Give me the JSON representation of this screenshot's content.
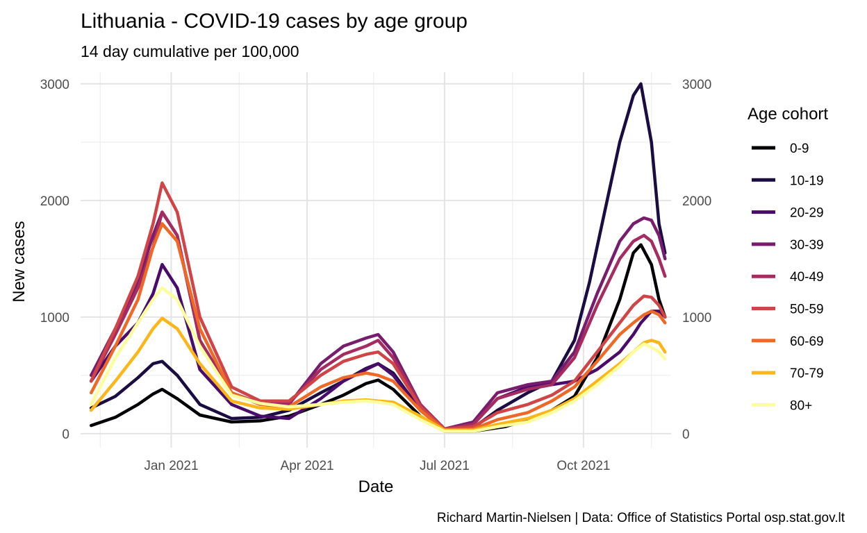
{
  "chart_data": {
    "type": "line",
    "title": "Lithuania - COVID-19 cases by age group",
    "subtitle": "14 day cumulative per 100,000",
    "xlabel": "Date",
    "ylabel": "New cases",
    "caption": "Richard Martin-Nielsen | Data: Office of Statistics Portal osp.stat.gov.lt",
    "legend_title": "Age cohort",
    "legend_position": "right",
    "grid": true,
    "xlim": [
      "2020-11-02",
      "2021-11-28"
    ],
    "ylim": [
      -120,
      3100
    ],
    "y_ticks": [
      0,
      1000,
      2000,
      3000
    ],
    "y_tick_labels": [
      "0",
      "1000",
      "2000",
      "3000"
    ],
    "x_ticks": [
      "2021-01-01",
      "2021-04-01",
      "2021-07-01",
      "2021-10-01"
    ],
    "x_tick_labels": [
      "Jan 2021",
      "Apr 2021",
      "Jul 2021",
      "Oct 2021"
    ],
    "x_minor_ticks": [
      "2020-11-15",
      "2021-02-15",
      "2021-05-15",
      "2021-08-15",
      "2021-11-15"
    ],
    "series": [
      {
        "name": "0-9",
        "color": "#000004",
        "x": [
          "2020-11-09",
          "2020-11-25",
          "2020-12-10",
          "2020-12-20",
          "2020-12-26",
          "2021-01-05",
          "2021-01-20",
          "2021-02-10",
          "2021-03-01",
          "2021-03-20",
          "2021-04-10",
          "2021-04-25",
          "2021-05-10",
          "2021-05-18",
          "2021-05-28",
          "2021-06-15",
          "2021-07-01",
          "2021-07-20",
          "2021-08-10",
          "2021-08-25",
          "2021-09-10",
          "2021-09-25",
          "2021-10-10",
          "2021-10-25",
          "2021-11-03",
          "2021-11-08",
          "2021-11-15",
          "2021-11-20",
          "2021-11-24"
        ],
        "y": [
          70,
          140,
          250,
          340,
          380,
          300,
          160,
          100,
          110,
          150,
          250,
          330,
          430,
          460,
          380,
          150,
          20,
          20,
          60,
          120,
          200,
          320,
          650,
          1150,
          1550,
          1620,
          1450,
          1150,
          1000
        ]
      },
      {
        "name": "10-19",
        "color": "#1b0c41",
        "x": [
          "2020-11-09",
          "2020-11-25",
          "2020-12-10",
          "2020-12-20",
          "2020-12-26",
          "2021-01-05",
          "2021-01-20",
          "2021-02-10",
          "2021-03-01",
          "2021-03-20",
          "2021-04-10",
          "2021-04-25",
          "2021-05-10",
          "2021-05-18",
          "2021-05-28",
          "2021-06-15",
          "2021-07-01",
          "2021-07-20",
          "2021-08-05",
          "2021-08-25",
          "2021-09-10",
          "2021-09-25",
          "2021-10-05",
          "2021-10-15",
          "2021-10-25",
          "2021-11-03",
          "2021-11-08",
          "2021-11-15",
          "2021-11-20",
          "2021-11-24"
        ],
        "y": [
          220,
          320,
          480,
          600,
          620,
          500,
          250,
          130,
          140,
          200,
          350,
          450,
          560,
          600,
          520,
          200,
          30,
          50,
          200,
          350,
          450,
          800,
          1300,
          1900,
          2500,
          2900,
          3000,
          2500,
          1800,
          1550
        ]
      },
      {
        "name": "20-29",
        "color": "#4a0c6b",
        "x": [
          "2020-11-09",
          "2020-11-25",
          "2020-12-10",
          "2020-12-20",
          "2020-12-26",
          "2021-01-05",
          "2021-01-20",
          "2021-02-10",
          "2021-03-01",
          "2021-03-20",
          "2021-04-10",
          "2021-04-25",
          "2021-05-10",
          "2021-05-18",
          "2021-05-28",
          "2021-06-15",
          "2021-07-01",
          "2021-07-20",
          "2021-08-05",
          "2021-08-25",
          "2021-09-10",
          "2021-09-25",
          "2021-10-10",
          "2021-10-25",
          "2021-11-03",
          "2021-11-08",
          "2021-11-15",
          "2021-11-20",
          "2021-11-24"
        ],
        "y": [
          450,
          750,
          950,
          1200,
          1450,
          1250,
          550,
          250,
          150,
          130,
          300,
          450,
          550,
          600,
          500,
          200,
          40,
          80,
          300,
          400,
          420,
          450,
          550,
          700,
          850,
          950,
          1050,
          1050,
          1000
        ]
      },
      {
        "name": "30-39",
        "color": "#781c6d",
        "x": [
          "2020-11-09",
          "2020-11-25",
          "2020-12-10",
          "2020-12-20",
          "2020-12-26",
          "2021-01-05",
          "2021-01-20",
          "2021-02-10",
          "2021-03-01",
          "2021-03-20",
          "2021-04-10",
          "2021-04-25",
          "2021-05-10",
          "2021-05-18",
          "2021-05-28",
          "2021-06-15",
          "2021-07-01",
          "2021-07-20",
          "2021-08-05",
          "2021-08-25",
          "2021-09-10",
          "2021-09-25",
          "2021-10-10",
          "2021-10-25",
          "2021-11-03",
          "2021-11-10",
          "2021-11-15",
          "2021-11-20",
          "2021-11-24"
        ],
        "y": [
          500,
          900,
          1300,
          1700,
          1900,
          1700,
          800,
          350,
          250,
          250,
          600,
          750,
          820,
          850,
          700,
          250,
          40,
          100,
          350,
          420,
          450,
          700,
          1200,
          1650,
          1800,
          1850,
          1830,
          1700,
          1500
        ]
      },
      {
        "name": "40-49",
        "color": "#a52c60",
        "x": [
          "2020-11-09",
          "2020-11-25",
          "2020-12-10",
          "2020-12-20",
          "2020-12-26",
          "2021-01-05",
          "2021-01-20",
          "2021-02-10",
          "2021-03-01",
          "2021-03-20",
          "2021-04-10",
          "2021-04-25",
          "2021-05-10",
          "2021-05-18",
          "2021-05-28",
          "2021-06-15",
          "2021-07-01",
          "2021-07-20",
          "2021-08-05",
          "2021-08-25",
          "2021-09-10",
          "2021-09-25",
          "2021-10-10",
          "2021-10-25",
          "2021-11-03",
          "2021-11-10",
          "2021-11-15",
          "2021-11-20",
          "2021-11-24"
        ],
        "y": [
          450,
          850,
          1250,
          1600,
          1900,
          1700,
          800,
          350,
          260,
          260,
          550,
          680,
          750,
          800,
          650,
          250,
          40,
          80,
          300,
          380,
          420,
          650,
          1100,
          1500,
          1650,
          1700,
          1650,
          1500,
          1350
        ]
      },
      {
        "name": "50-59",
        "color": "#cf4446",
        "x": [
          "2020-11-09",
          "2020-11-25",
          "2020-12-10",
          "2020-12-20",
          "2020-12-26",
          "2021-01-05",
          "2021-01-20",
          "2021-02-10",
          "2021-03-01",
          "2021-03-20",
          "2021-04-10",
          "2021-04-25",
          "2021-05-10",
          "2021-05-18",
          "2021-05-28",
          "2021-06-15",
          "2021-07-01",
          "2021-07-20",
          "2021-08-05",
          "2021-08-25",
          "2021-09-10",
          "2021-09-25",
          "2021-10-10",
          "2021-10-25",
          "2021-11-03",
          "2021-11-10",
          "2021-11-15",
          "2021-11-20",
          "2021-11-24"
        ],
        "y": [
          450,
          900,
          1350,
          1800,
          2150,
          1900,
          1000,
          400,
          280,
          280,
          500,
          620,
          680,
          700,
          600,
          230,
          40,
          60,
          180,
          250,
          330,
          450,
          700,
          950,
          1100,
          1180,
          1170,
          1100,
          1000
        ]
      },
      {
        "name": "60-69",
        "color": "#ed6925",
        "x": [
          "2020-11-09",
          "2020-11-25",
          "2020-12-10",
          "2020-12-20",
          "2020-12-26",
          "2021-01-05",
          "2021-01-20",
          "2021-02-10",
          "2021-03-01",
          "2021-03-20",
          "2021-04-10",
          "2021-04-25",
          "2021-05-10",
          "2021-05-18",
          "2021-05-28",
          "2021-06-15",
          "2021-07-01",
          "2021-07-20",
          "2021-08-05",
          "2021-08-25",
          "2021-09-10",
          "2021-09-25",
          "2021-10-10",
          "2021-10-25",
          "2021-11-03",
          "2021-11-10",
          "2021-11-15",
          "2021-11-20",
          "2021-11-24"
        ],
        "y": [
          350,
          750,
          1150,
          1600,
          1800,
          1650,
          900,
          350,
          250,
          230,
          400,
          480,
          520,
          500,
          450,
          200,
          30,
          40,
          120,
          180,
          280,
          400,
          620,
          850,
          950,
          1020,
          1050,
          1020,
          950
        ]
      },
      {
        "name": "70-79",
        "color": "#fbb61a",
        "x": [
          "2020-11-09",
          "2020-11-25",
          "2020-12-10",
          "2020-12-20",
          "2020-12-26",
          "2021-01-05",
          "2021-01-20",
          "2021-02-10",
          "2021-03-01",
          "2021-03-20",
          "2021-04-10",
          "2021-04-25",
          "2021-05-10",
          "2021-05-18",
          "2021-05-28",
          "2021-06-15",
          "2021-07-01",
          "2021-07-20",
          "2021-08-05",
          "2021-08-25",
          "2021-09-10",
          "2021-09-25",
          "2021-10-10",
          "2021-10-25",
          "2021-11-03",
          "2021-11-10",
          "2021-11-15",
          "2021-11-20",
          "2021-11-24"
        ],
        "y": [
          200,
          450,
          700,
          900,
          990,
          900,
          600,
          280,
          220,
          210,
          250,
          280,
          290,
          280,
          270,
          150,
          30,
          30,
          80,
          130,
          200,
          300,
          450,
          600,
          700,
          780,
          800,
          780,
          700
        ]
      },
      {
        "name": "80+",
        "color": "#fcfe9e",
        "x": [
          "2020-11-09",
          "2020-11-25",
          "2020-12-10",
          "2020-12-20",
          "2020-12-26",
          "2021-01-05",
          "2021-01-20",
          "2021-02-10",
          "2021-03-01",
          "2021-03-20",
          "2021-04-10",
          "2021-04-25",
          "2021-05-10",
          "2021-05-18",
          "2021-05-28",
          "2021-06-15",
          "2021-07-01",
          "2021-07-20",
          "2021-08-05",
          "2021-08-25",
          "2021-09-10",
          "2021-09-25",
          "2021-10-10",
          "2021-10-25",
          "2021-11-03",
          "2021-11-10",
          "2021-11-15",
          "2021-11-20",
          "2021-11-24"
        ],
        "y": [
          250,
          650,
          950,
          1150,
          1250,
          1150,
          750,
          330,
          260,
          230,
          250,
          270,
          280,
          270,
          250,
          120,
          20,
          20,
          60,
          100,
          180,
          280,
          420,
          580,
          700,
          770,
          740,
          700,
          640
        ]
      }
    ]
  }
}
